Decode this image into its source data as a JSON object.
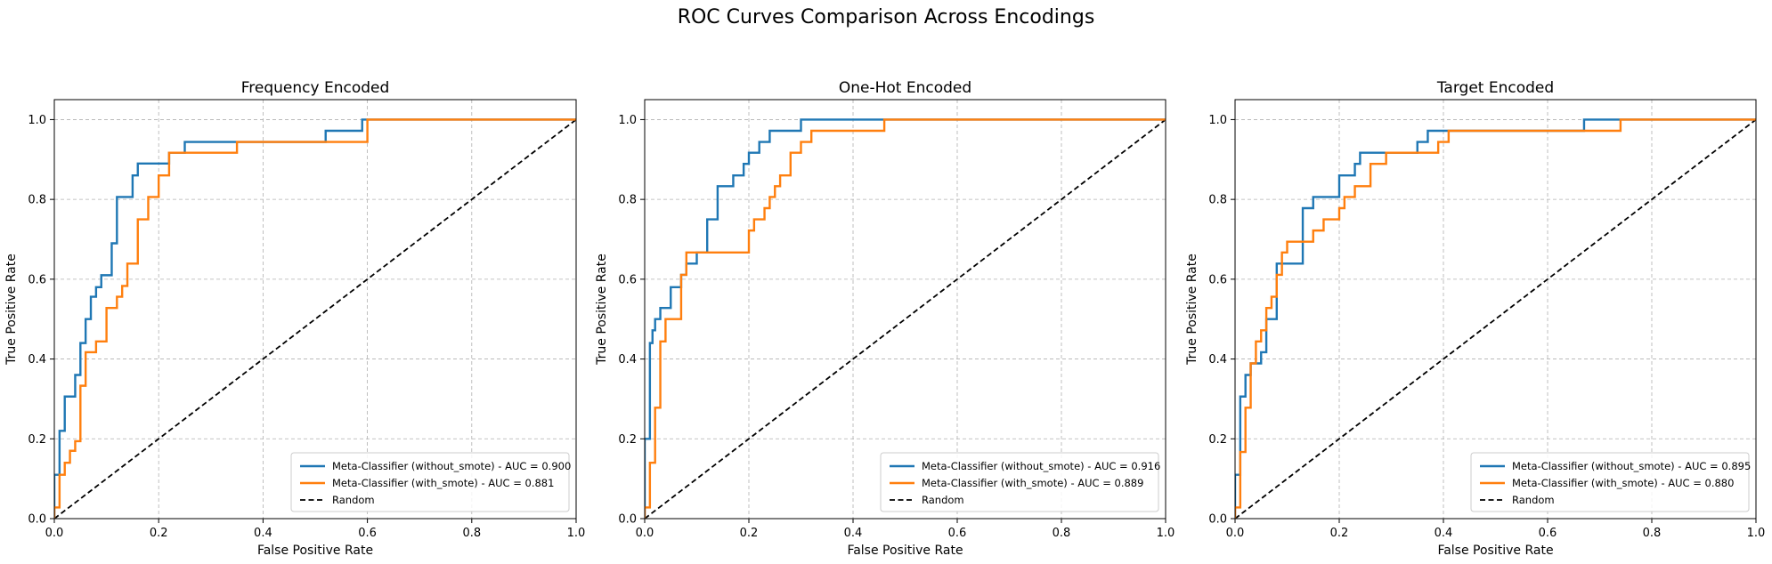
{
  "figure": {
    "title": "ROC Curves Comparison Across Encodings"
  },
  "colors": {
    "without_smote": "#1f77b4",
    "with_smote": "#ff7f0e",
    "random": "#000000",
    "grid": "#b0b0b0"
  },
  "chart_data": [
    {
      "type": "line",
      "title": "Frequency Encoded",
      "xlabel": "False Positive Rate",
      "ylabel": "True Positive Rate",
      "xlim": [
        0,
        1
      ],
      "ylim": [
        0,
        1.05
      ],
      "xticks": [
        "0.0",
        "0.2",
        "0.4",
        "0.6",
        "0.8",
        "1.0"
      ],
      "yticks": [
        "0.0",
        "0.2",
        "0.4",
        "0.6",
        "0.8",
        "1.0"
      ],
      "grid": true,
      "grid_style": "dashed",
      "legend": "bottom-right",
      "series": [
        {
          "name": "Meta-Classifier (without_smote) - AUC = 0.900",
          "color": "#1f77b4",
          "x": [
            0,
            0,
            0.01,
            0.01,
            0.02,
            0.02,
            0.04,
            0.04,
            0.05,
            0.05,
            0.06,
            0.06,
            0.07,
            0.07,
            0.08,
            0.08,
            0.09,
            0.09,
            0.11,
            0.11,
            0.12,
            0.12,
            0.15,
            0.15,
            0.16,
            0.16,
            0.22,
            0.22,
            0.25,
            0.25,
            0.52,
            0.52,
            0.59,
            0.59,
            1.0
          ],
          "y": [
            0,
            0.11,
            0.11,
            0.22,
            0.22,
            0.306,
            0.306,
            0.36,
            0.36,
            0.44,
            0.44,
            0.5,
            0.5,
            0.556,
            0.556,
            0.58,
            0.58,
            0.61,
            0.61,
            0.69,
            0.69,
            0.806,
            0.806,
            0.86,
            0.86,
            0.89,
            0.89,
            0.917,
            0.917,
            0.944,
            0.944,
            0.972,
            0.972,
            1.0,
            1.0
          ]
        },
        {
          "name": "Meta-Classifier (with_smote) - AUC = 0.881",
          "color": "#ff7f0e",
          "x": [
            0,
            0,
            0.01,
            0.01,
            0.02,
            0.02,
            0.03,
            0.03,
            0.04,
            0.04,
            0.05,
            0.05,
            0.06,
            0.06,
            0.08,
            0.08,
            0.1,
            0.1,
            0.12,
            0.12,
            0.13,
            0.13,
            0.14,
            0.14,
            0.16,
            0.16,
            0.18,
            0.18,
            0.2,
            0.2,
            0.22,
            0.22,
            0.35,
            0.35,
            0.6,
            0.6,
            1.0
          ],
          "y": [
            0,
            0.028,
            0.028,
            0.11,
            0.11,
            0.14,
            0.14,
            0.17,
            0.17,
            0.194,
            0.194,
            0.333,
            0.333,
            0.417,
            0.417,
            0.444,
            0.444,
            0.528,
            0.528,
            0.556,
            0.556,
            0.583,
            0.583,
            0.639,
            0.639,
            0.75,
            0.75,
            0.806,
            0.806,
            0.86,
            0.86,
            0.917,
            0.917,
            0.944,
            0.944,
            1.0,
            1.0
          ]
        },
        {
          "name": "Random",
          "color": "#000000",
          "dashed": true,
          "x": [
            0,
            1
          ],
          "y": [
            0,
            1
          ]
        }
      ]
    },
    {
      "type": "line",
      "title": "One-Hot Encoded",
      "xlabel": "False Positive Rate",
      "ylabel": "True Positive Rate",
      "xlim": [
        0,
        1
      ],
      "ylim": [
        0,
        1.05
      ],
      "xticks": [
        "0.0",
        "0.2",
        "0.4",
        "0.6",
        "0.8",
        "1.0"
      ],
      "yticks": [
        "0.0",
        "0.2",
        "0.4",
        "0.6",
        "0.8",
        "1.0"
      ],
      "grid": true,
      "grid_style": "dashed",
      "legend": "bottom-right",
      "series": [
        {
          "name": "Meta-Classifier (without_smote) - AUC = 0.916",
          "color": "#1f77b4",
          "x": [
            0,
            0,
            0.01,
            0.01,
            0.015,
            0.015,
            0.02,
            0.02,
            0.03,
            0.03,
            0.05,
            0.05,
            0.07,
            0.07,
            0.08,
            0.08,
            0.1,
            0.1,
            0.12,
            0.12,
            0.14,
            0.14,
            0.17,
            0.17,
            0.19,
            0.19,
            0.2,
            0.2,
            0.22,
            0.22,
            0.24,
            0.24,
            0.27,
            0.27,
            0.3,
            0.3,
            0.4,
            0.4,
            1.0
          ],
          "y": [
            0,
            0.2,
            0.2,
            0.44,
            0.44,
            0.472,
            0.472,
            0.5,
            0.5,
            0.528,
            0.528,
            0.58,
            0.58,
            0.611,
            0.611,
            0.639,
            0.639,
            0.667,
            0.667,
            0.75,
            0.75,
            0.833,
            0.833,
            0.86,
            0.86,
            0.889,
            0.889,
            0.917,
            0.917,
            0.944,
            0.944,
            0.972,
            0.972,
            0.972,
            0.972,
            1.0,
            1.0,
            1.0,
            1.0
          ]
        },
        {
          "name": "Meta-Classifier (with_smote) - AUC = 0.889",
          "color": "#ff7f0e",
          "x": [
            0,
            0,
            0.01,
            0.01,
            0.02,
            0.02,
            0.03,
            0.03,
            0.04,
            0.04,
            0.05,
            0.05,
            0.07,
            0.07,
            0.08,
            0.08,
            0.2,
            0.2,
            0.21,
            0.21,
            0.23,
            0.23,
            0.24,
            0.24,
            0.25,
            0.25,
            0.26,
            0.26,
            0.27,
            0.27,
            0.28,
            0.28,
            0.3,
            0.3,
            0.32,
            0.32,
            0.46,
            0.46,
            1.0
          ],
          "y": [
            0,
            0.028,
            0.028,
            0.14,
            0.14,
            0.278,
            0.278,
            0.444,
            0.444,
            0.5,
            0.5,
            0.5,
            0.5,
            0.611,
            0.611,
            0.667,
            0.667,
            0.722,
            0.722,
            0.75,
            0.75,
            0.778,
            0.778,
            0.806,
            0.806,
            0.833,
            0.833,
            0.86,
            0.86,
            0.86,
            0.86,
            0.917,
            0.917,
            0.944,
            0.944,
            0.972,
            0.972,
            1.0,
            1.0
          ]
        },
        {
          "name": "Random",
          "color": "#000000",
          "dashed": true,
          "x": [
            0,
            1
          ],
          "y": [
            0,
            1
          ]
        }
      ]
    },
    {
      "type": "line",
      "title": "Target Encoded",
      "xlabel": "False Positive Rate",
      "ylabel": "True Positive Rate",
      "xlim": [
        0,
        1
      ],
      "ylim": [
        0,
        1.05
      ],
      "xticks": [
        "0.0",
        "0.2",
        "0.4",
        "0.6",
        "0.8",
        "1.0"
      ],
      "yticks": [
        "0.0",
        "0.2",
        "0.4",
        "0.6",
        "0.8",
        "1.0"
      ],
      "grid": true,
      "grid_style": "dashed",
      "legend": "bottom-right",
      "series": [
        {
          "name": "Meta-Classifier (without_smote) - AUC = 0.895",
          "color": "#1f77b4",
          "x": [
            0,
            0,
            0.01,
            0.01,
            0.02,
            0.02,
            0.03,
            0.03,
            0.04,
            0.04,
            0.05,
            0.05,
            0.06,
            0.06,
            0.07,
            0.07,
            0.08,
            0.08,
            0.13,
            0.13,
            0.15,
            0.15,
            0.17,
            0.17,
            0.2,
            0.2,
            0.21,
            0.21,
            0.23,
            0.23,
            0.24,
            0.24,
            0.29,
            0.29,
            0.35,
            0.35,
            0.37,
            0.37,
            0.42,
            0.42,
            0.67,
            0.67,
            1.0
          ],
          "y": [
            0,
            0.11,
            0.11,
            0.306,
            0.306,
            0.36,
            0.36,
            0.389,
            0.389,
            0.389,
            0.389,
            0.417,
            0.417,
            0.5,
            0.5,
            0.5,
            0.5,
            0.639,
            0.639,
            0.778,
            0.778,
            0.806,
            0.806,
            0.806,
            0.806,
            0.86,
            0.86,
            0.86,
            0.86,
            0.889,
            0.889,
            0.917,
            0.917,
            0.917,
            0.917,
            0.944,
            0.944,
            0.972,
            0.972,
            0.972,
            0.972,
            1.0,
            1.0
          ]
        },
        {
          "name": "Meta-Classifier (with_smote) - AUC = 0.880",
          "color": "#ff7f0e",
          "x": [
            0,
            0,
            0.01,
            0.01,
            0.02,
            0.02,
            0.03,
            0.03,
            0.04,
            0.04,
            0.05,
            0.05,
            0.06,
            0.06,
            0.07,
            0.07,
            0.08,
            0.08,
            0.09,
            0.09,
            0.1,
            0.1,
            0.13,
            0.13,
            0.15,
            0.15,
            0.17,
            0.17,
            0.19,
            0.19,
            0.2,
            0.2,
            0.21,
            0.21,
            0.23,
            0.23,
            0.26,
            0.26,
            0.29,
            0.29,
            0.39,
            0.39,
            0.41,
            0.41,
            0.74,
            0.74,
            1.0
          ],
          "y": [
            0,
            0.028,
            0.028,
            0.167,
            0.167,
            0.278,
            0.278,
            0.389,
            0.389,
            0.444,
            0.444,
            0.472,
            0.472,
            0.528,
            0.528,
            0.556,
            0.556,
            0.611,
            0.611,
            0.667,
            0.667,
            0.694,
            0.694,
            0.694,
            0.694,
            0.722,
            0.722,
            0.75,
            0.75,
            0.75,
            0.75,
            0.778,
            0.778,
            0.806,
            0.806,
            0.833,
            0.833,
            0.889,
            0.889,
            0.917,
            0.917,
            0.944,
            0.944,
            0.972,
            0.972,
            1.0,
            1.0
          ]
        },
        {
          "name": "Random",
          "color": "#000000",
          "dashed": true,
          "x": [
            0,
            1
          ],
          "y": [
            0,
            1
          ]
        }
      ]
    }
  ]
}
